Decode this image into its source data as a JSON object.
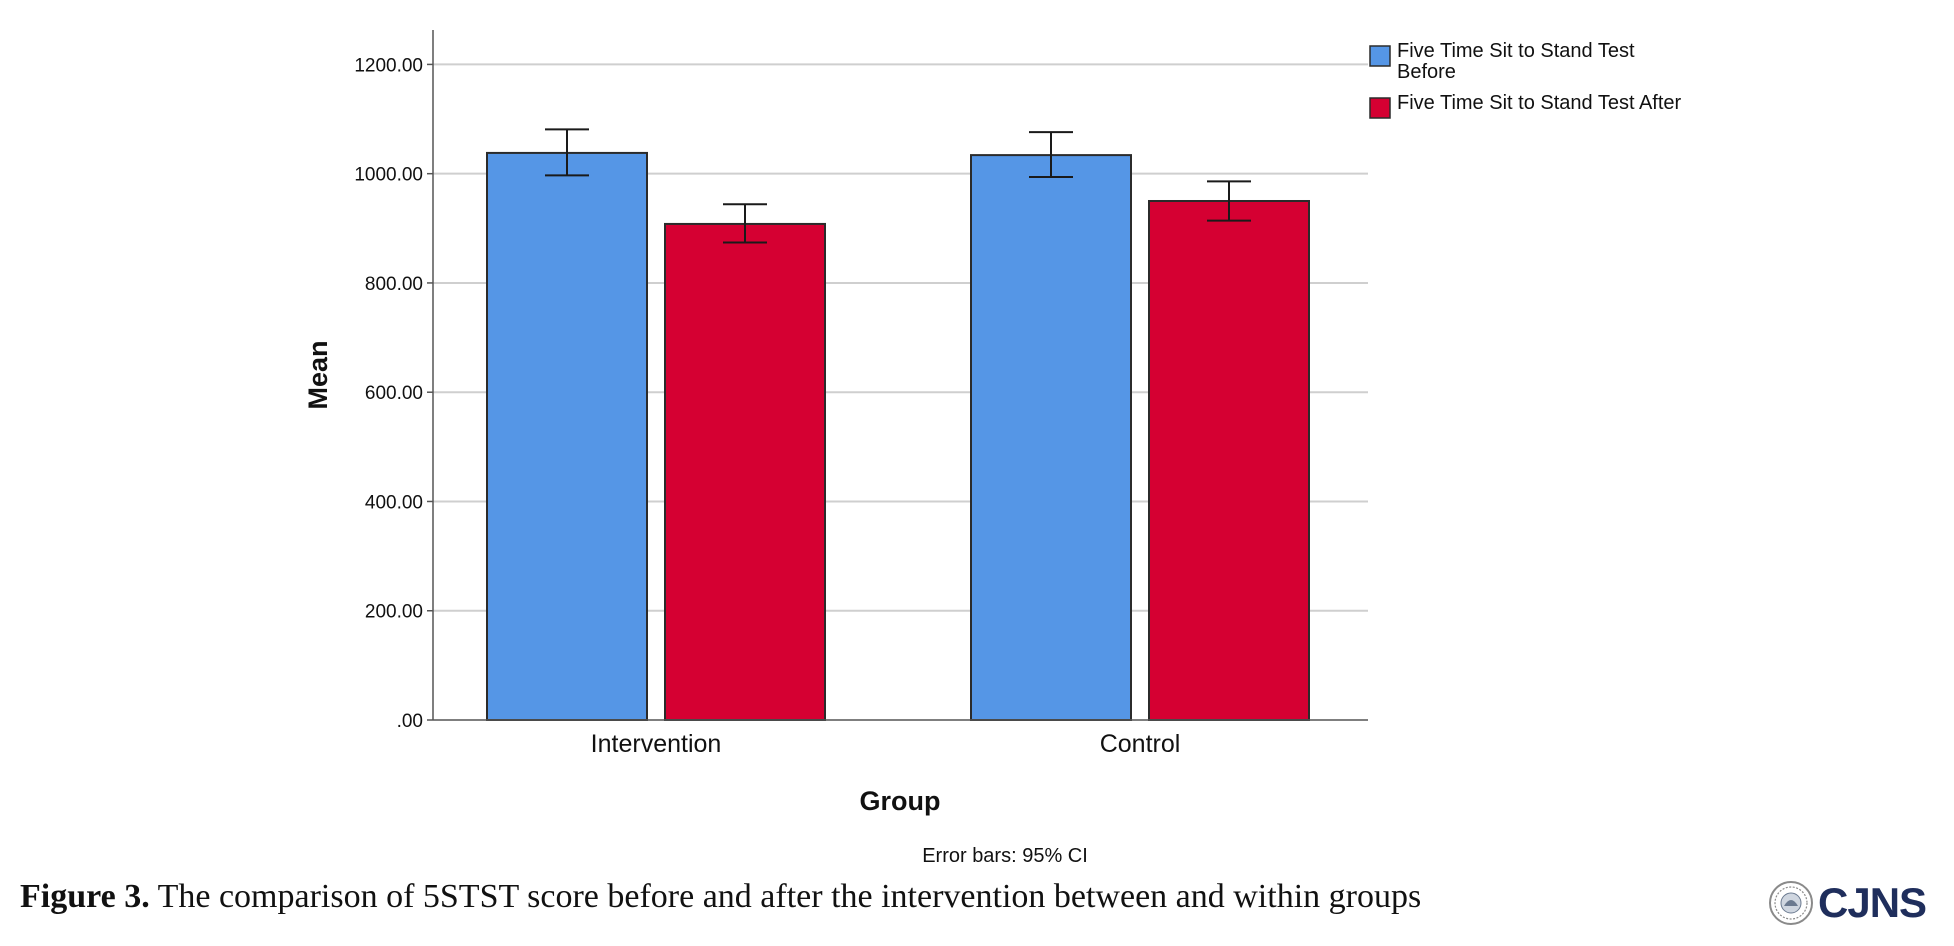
{
  "chart_data": {
    "type": "bar",
    "categories": [
      "Intervention",
      "Control"
    ],
    "series": [
      {
        "name": "Five Time Sit to Stand Test Before",
        "legend_lines": [
          "Five Time Sit to Stand Test",
          "Before"
        ],
        "color": "#5596e6",
        "values": [
          1038,
          1034
        ],
        "ci_low": [
          997,
          994
        ],
        "ci_high": [
          1081,
          1076
        ]
      },
      {
        "name": "Five Time Sit to Stand Test After",
        "legend_lines": [
          "Five Time Sit to Stand Test After"
        ],
        "color": "#d50032",
        "values": [
          908,
          950
        ],
        "ci_low": [
          874,
          914
        ],
        "ci_high": [
          944,
          986
        ]
      }
    ],
    "ylim": [
      0,
      1263
    ],
    "yticks": [
      0,
      200,
      400,
      600,
      800,
      1000,
      1200
    ],
    "ytick_labels": [
      ".00",
      "200.00",
      "400.00",
      "600.00",
      "800.00",
      "1000.00",
      "1200.00"
    ],
    "xlabel": "Group",
    "ylabel": "Mean",
    "note": "Error bars: 95% CI",
    "grid": true,
    "legend_position": "top-right"
  },
  "caption": {
    "label": "Figure 3.",
    "text": " The comparison of 5STST score before and after the intervention between and within groups"
  },
  "logo": {
    "text": "CJNS"
  }
}
